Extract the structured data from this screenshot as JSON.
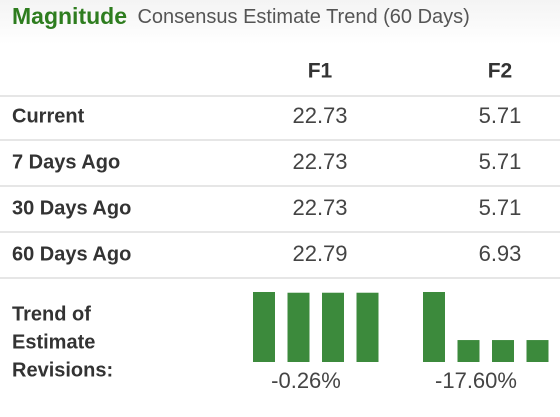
{
  "header": {
    "title": "Magnitude",
    "subtitle": "Consensus Estimate Trend (60 Days)"
  },
  "table": {
    "columns": [
      "F1",
      "F2"
    ],
    "rows": [
      [
        "Current",
        22.73,
        5.71
      ],
      [
        "7 Days Ago",
        22.73,
        5.71
      ],
      [
        "30 Days Ago",
        22.73,
        5.71
      ],
      [
        "60 Days Ago",
        22.79,
        6.93
      ]
    ]
  },
  "trend": {
    "label": [
      "Trend of",
      "Estimate",
      "Revisions:"
    ],
    "changes": [
      "-0.26%",
      "-17.60%"
    ]
  }
}
